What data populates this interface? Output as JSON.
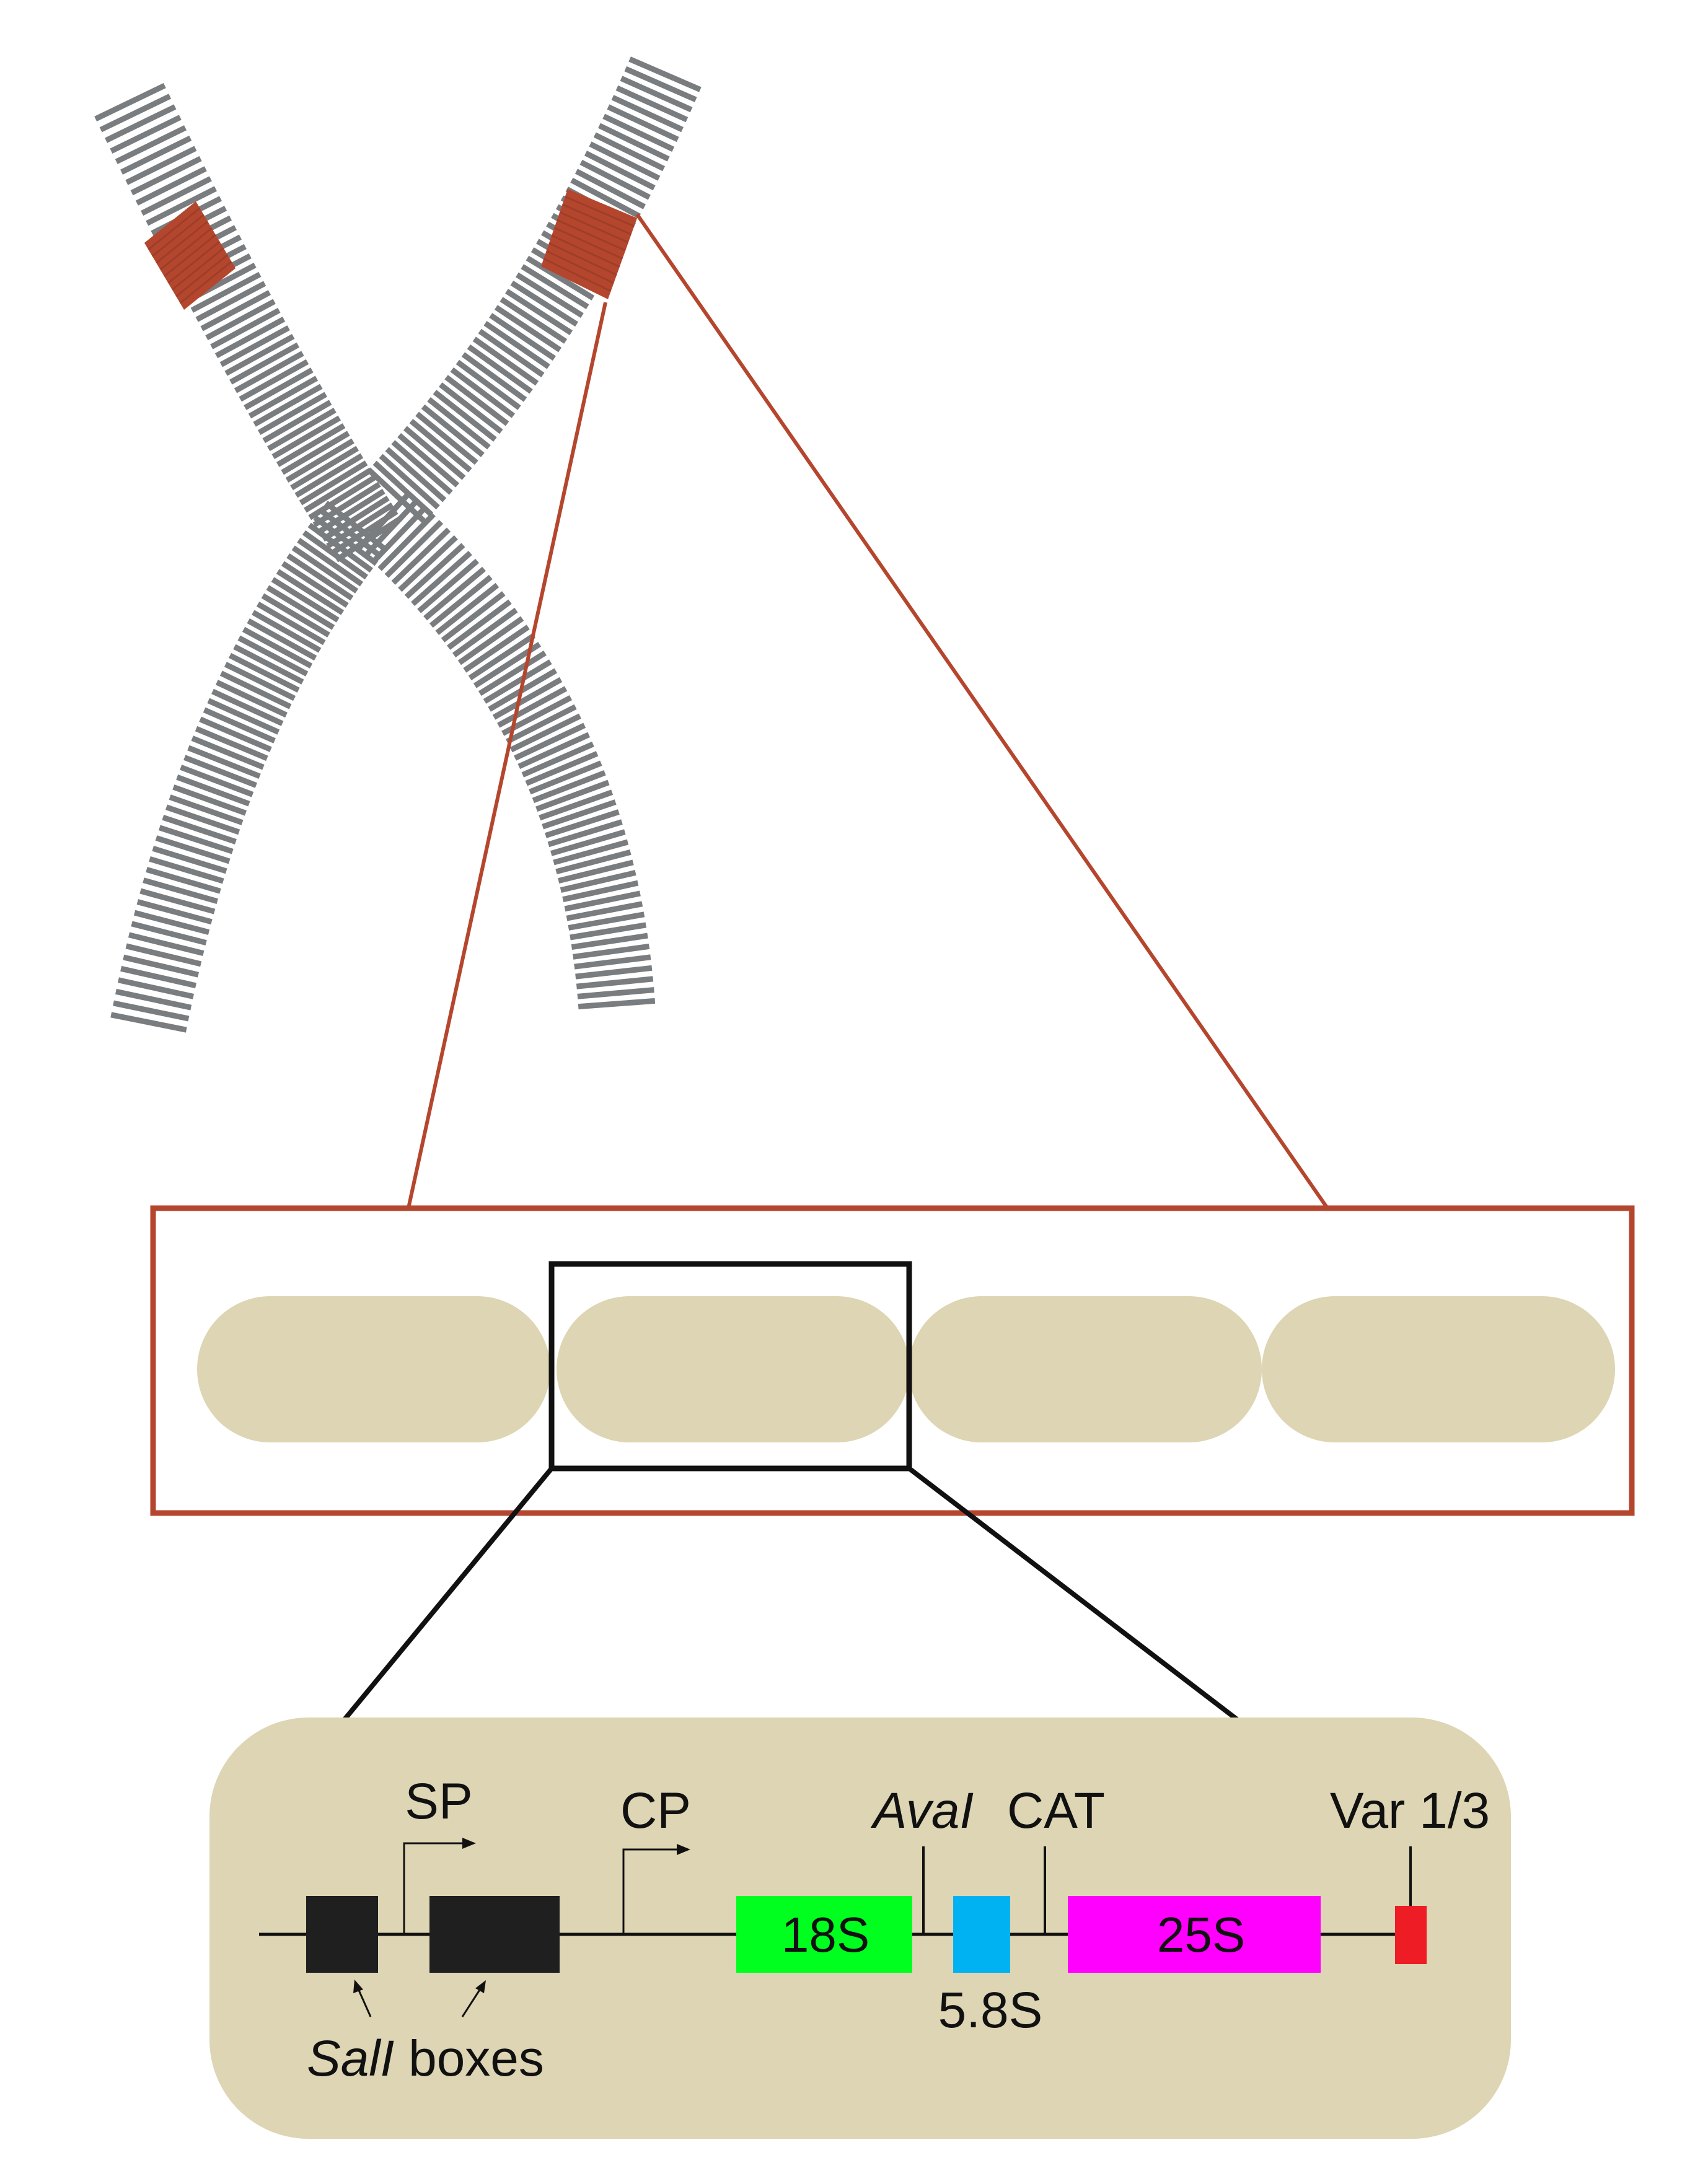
{
  "colors": {
    "chromatid": "#7a7d80",
    "rdna_locus": "#b5462e",
    "zoom_red": "#b5462e",
    "repeat_unit": "#ddd5b3",
    "box_black": "#1f1f1f",
    "rrna_18s": "#00ff1e",
    "rrna_5_8s": "#00b2f2",
    "rrna_25s": "#ff00ff",
    "var_region": "#ee1c24"
  },
  "repeat_units": 4,
  "labels": {
    "sp": "SP",
    "cp": "CP",
    "ava_i": "AvaI",
    "cat": "CAT",
    "var": "Var 1/3",
    "gene_18s": "18S",
    "gene_5_8s": "5.8S",
    "gene_25s": "25S",
    "sal_italic": "SalI",
    "sal_rest": " boxes"
  }
}
